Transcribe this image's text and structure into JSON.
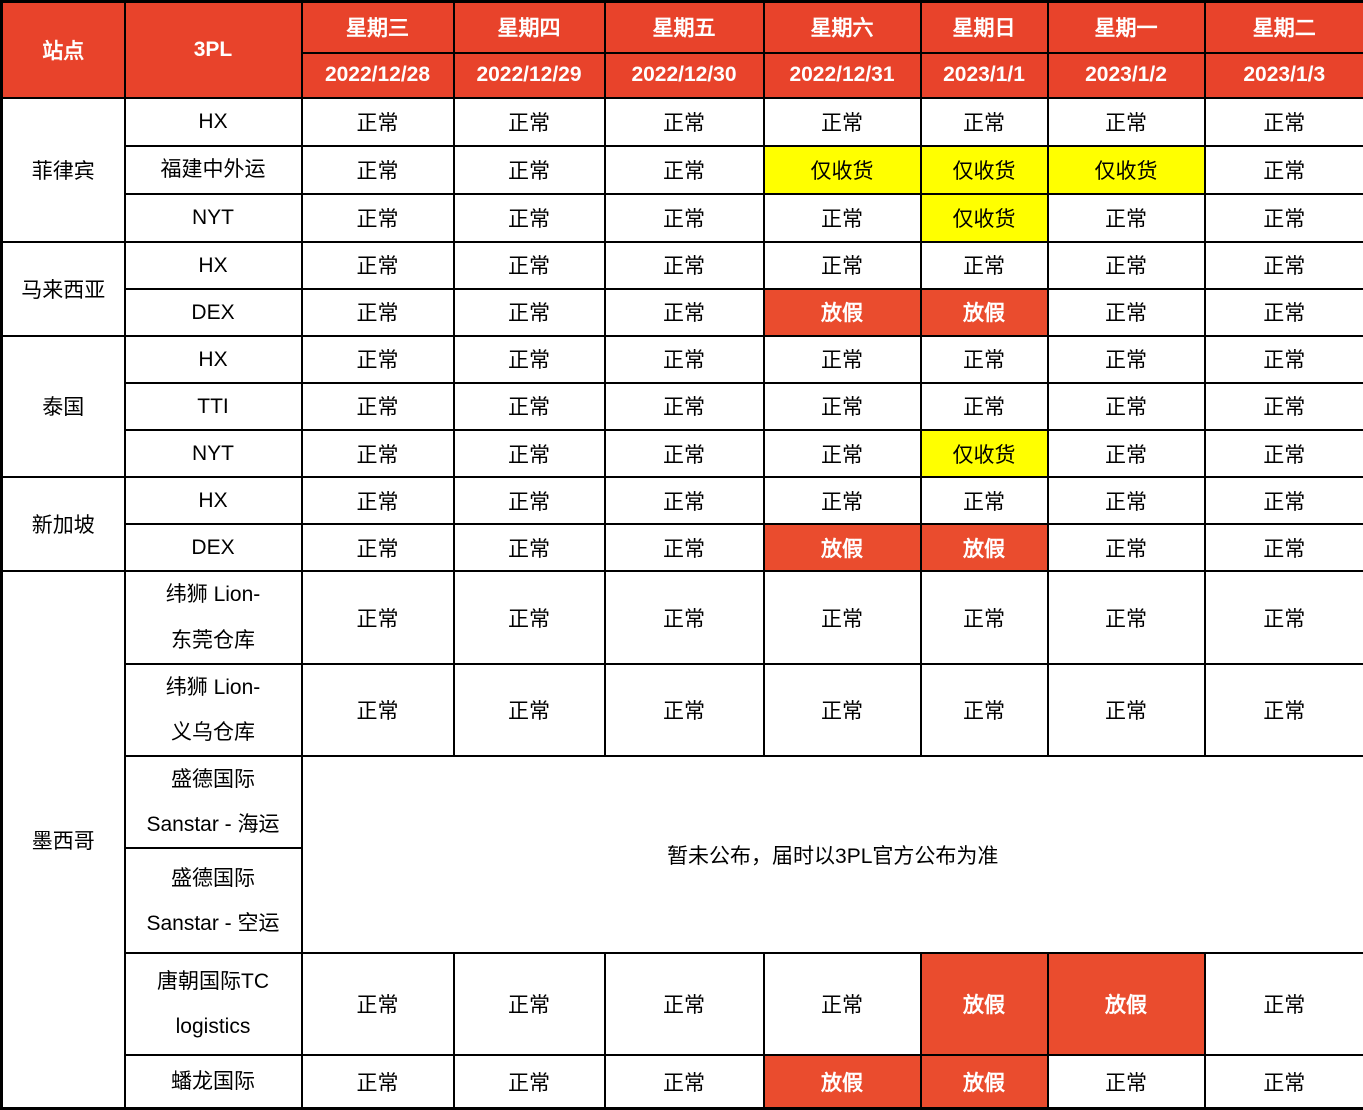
{
  "table": {
    "header": {
      "site_label": "站点",
      "tpl_label": "3PL",
      "days": [
        {
          "weekday": "星期三",
          "date": "2022/12/28"
        },
        {
          "weekday": "星期四",
          "date": "2022/12/29"
        },
        {
          "weekday": "星期五",
          "date": "2022/12/30"
        },
        {
          "weekday": "星期六",
          "date": "2022/12/31"
        },
        {
          "weekday": "星期日",
          "date": "2023/1/1"
        },
        {
          "weekday": "星期一",
          "date": "2023/1/2"
        },
        {
          "weekday": "星期二",
          "date": "2023/1/3"
        }
      ]
    },
    "statuses": {
      "normal": "正常",
      "receive_only": "仅收货",
      "holiday": "放假"
    },
    "notice": "暂未公布，届时以3PL官方公布为准",
    "groups": [
      {
        "site": "菲律宾",
        "rows": [
          {
            "tpl": "HX",
            "cells": [
              "normal",
              "normal",
              "normal",
              "normal",
              "normal",
              "normal",
              "normal"
            ]
          },
          {
            "tpl": "福建中外运",
            "cells": [
              "normal",
              "normal",
              "normal",
              "receive_only",
              "receive_only",
              "receive_only",
              "normal"
            ]
          },
          {
            "tpl": "NYT",
            "cells": [
              "normal",
              "normal",
              "normal",
              "normal",
              "receive_only",
              "normal",
              "normal"
            ]
          }
        ]
      },
      {
        "site": "马来西亚",
        "rows": [
          {
            "tpl": "HX",
            "cells": [
              "normal",
              "normal",
              "normal",
              "normal",
              "normal",
              "normal",
              "normal"
            ]
          },
          {
            "tpl": "DEX",
            "cells": [
              "normal",
              "normal",
              "normal",
              "holiday",
              "holiday",
              "normal",
              "normal"
            ]
          }
        ]
      },
      {
        "site": "泰国",
        "rows": [
          {
            "tpl": "HX",
            "cells": [
              "normal",
              "normal",
              "normal",
              "normal",
              "normal",
              "normal",
              "normal"
            ]
          },
          {
            "tpl": "TTI",
            "cells": [
              "normal",
              "normal",
              "normal",
              "normal",
              "normal",
              "normal",
              "normal"
            ]
          },
          {
            "tpl": "NYT",
            "cells": [
              "normal",
              "normal",
              "normal",
              "normal",
              "receive_only",
              "normal",
              "normal"
            ]
          }
        ]
      },
      {
        "site": "新加坡",
        "rows": [
          {
            "tpl": "HX",
            "cells": [
              "normal",
              "normal",
              "normal",
              "normal",
              "normal",
              "normal",
              "normal"
            ]
          },
          {
            "tpl": "DEX",
            "cells": [
              "normal",
              "normal",
              "normal",
              "holiday",
              "holiday",
              "normal",
              "normal"
            ]
          }
        ]
      },
      {
        "site": "墨西哥",
        "rows": [
          {
            "tpl": "纬狮 Lion-\n东莞仓库",
            "cells": [
              "normal",
              "normal",
              "normal",
              "normal",
              "normal",
              "normal",
              "normal"
            ]
          },
          {
            "tpl": "纬狮 Lion-\n义乌仓库",
            "cells": [
              "normal",
              "normal",
              "normal",
              "normal",
              "normal",
              "normal",
              "normal"
            ]
          },
          {
            "tpl": "盛德国际\nSanstar - 海运",
            "notice_span": "start"
          },
          {
            "tpl": "盛德国际\nSanstar - 空运",
            "notice_span": "covered"
          },
          {
            "tpl": "唐朝国际TC\nlogistics",
            "cells": [
              "normal",
              "normal",
              "normal",
              "normal",
              "holiday",
              "holiday",
              "normal"
            ]
          },
          {
            "tpl": "蟠龙国际",
            "cells": [
              "normal",
              "normal",
              "normal",
              "holiday",
              "holiday",
              "normal",
              "normal"
            ]
          }
        ]
      }
    ]
  },
  "colors": {
    "header_bg": "#E8432B",
    "holiday_bg": "#EA4C2E",
    "receive_only_bg": "#FFFF00",
    "border": "#000000",
    "header_text": "#FFFFFF",
    "body_text": "#000000"
  }
}
